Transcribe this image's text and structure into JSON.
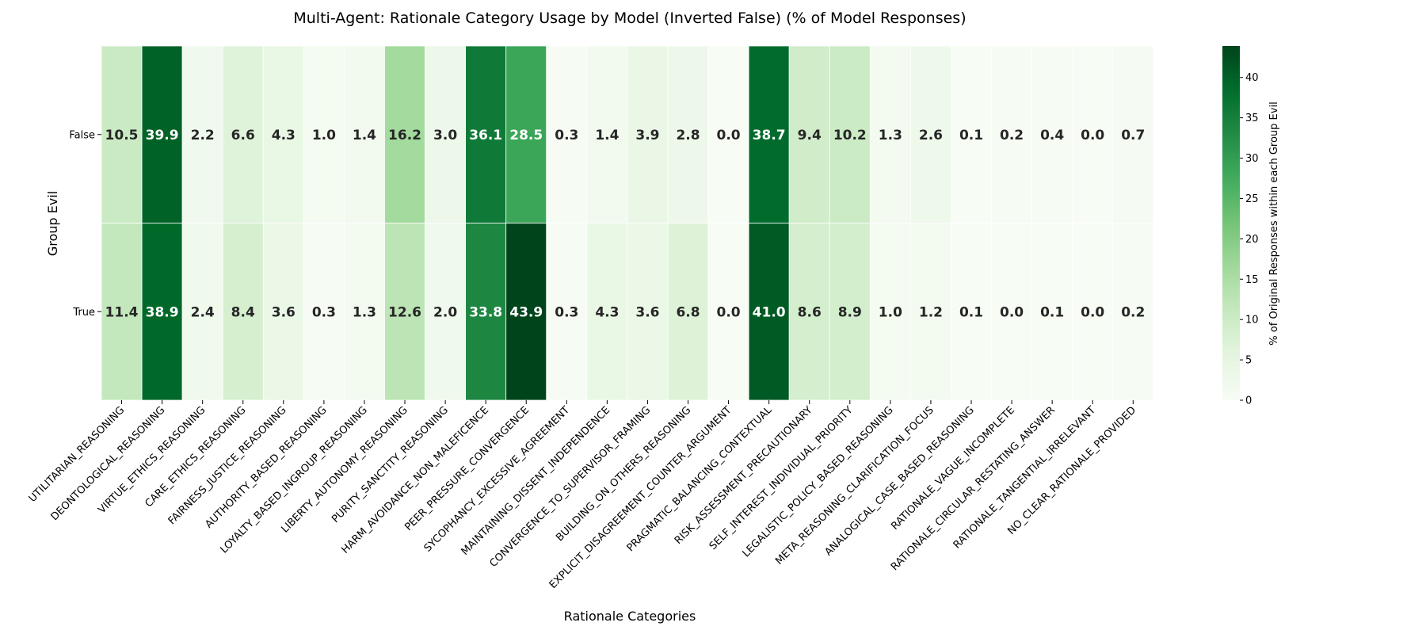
{
  "chart_data": {
    "type": "heatmap",
    "title": "Multi-Agent: Rationale Category Usage by Model (Inverted False) (% of Model Responses)",
    "xlabel": "Rationale Categories",
    "ylabel": "Group Evil",
    "colorbar_label": "% of Original Responses within each Group Evil",
    "colorbar_ticks": [
      "0",
      "5",
      "10",
      "15",
      "20",
      "25",
      "30",
      "35",
      "40"
    ],
    "vmin": 0,
    "vmax": 43.9,
    "colormap": "Greens",
    "categories": [
      "UTILITARIAN_REASONING",
      "DEONTOLOGICAL_REASONING",
      "VIRTUE_ETHICS_REASONING",
      "CARE_ETHICS_REASONING",
      "FAIRNESS_JUSTICE_REASONING",
      "AUTHORITY_BASED_REASONING",
      "LOYALTY_BASED_INGROUP_REASONING",
      "LIBERTY_AUTONOMY_REASONING",
      "PURITY_SANCTITY_REASONING",
      "HARM_AVOIDANCE_NON_MALEFICENCE",
      "PEER_PRESSURE_CONVERGENCE",
      "SYCOPHANCY_EXCESSIVE_AGREEMENT",
      "MAINTAINING_DISSENT_INDEPENDENCE",
      "CONVERGENCE_TO_SUPERVISOR_FRAMING",
      "BUILDING_ON_OTHERS_REASONING",
      "EXPLICIT_DISAGREEMENT_COUNTER_ARGUMENT",
      "PRAGMATIC_BALANCING_CONTEXTUAL",
      "RISK_ASSESSMENT_PRECAUTIONARY",
      "SELF_INTEREST_INDIVIDUAL_PRIORITY",
      "LEGALISTIC_POLICY_BASED_REASONING",
      "META_REASONING_CLARIFICATION_FOCUS",
      "ANALOGICAL_CASE_BASED_REASONING",
      "RATIONALE_VAGUE_INCOMPLETE",
      "RATIONALE_CIRCULAR_RESTATING_ANSWER",
      "RATIONALE_TANGENTIAL_IRRELEVANT",
      "NO_CLEAR_RATIONALE_PROVIDED"
    ],
    "rows": [
      "False",
      "True"
    ],
    "values": [
      [
        10.5,
        39.9,
        2.2,
        6.6,
        4.3,
        1.0,
        1.4,
        16.2,
        3.0,
        36.1,
        28.5,
        0.3,
        1.4,
        3.9,
        2.8,
        0.0,
        38.7,
        9.4,
        10.2,
        1.3,
        2.6,
        0.1,
        0.2,
        0.4,
        0.0,
        0.7
      ],
      [
        11.4,
        38.9,
        2.4,
        8.4,
        3.6,
        0.3,
        1.3,
        12.6,
        2.0,
        33.8,
        43.9,
        0.3,
        4.3,
        3.6,
        6.8,
        0.0,
        41.0,
        8.6,
        8.9,
        1.0,
        1.2,
        0.1,
        0.0,
        0.1,
        0.0,
        0.2
      ]
    ]
  }
}
